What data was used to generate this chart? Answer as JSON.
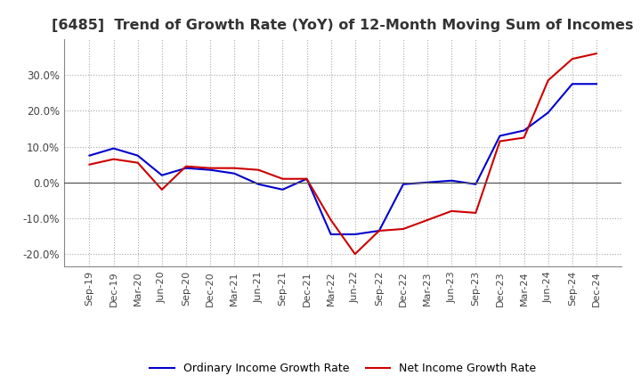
{
  "title": "[6485]  Trend of Growth Rate (YoY) of 12-Month Moving Sum of Incomes",
  "title_fontsize": 11.5,
  "ylim": [
    -0.235,
    0.4
  ],
  "yticks": [
    -0.2,
    -0.1,
    0.0,
    0.1,
    0.2,
    0.3
  ],
  "background_color": "#ffffff",
  "grid_color": "#aaaaaa",
  "ordinary_color": "#0000cc",
  "net_color": "#cc0000",
  "legend_ordinary": "Ordinary Income Growth Rate",
  "legend_net": "Net Income Growth Rate",
  "x_labels": [
    "Sep-19",
    "Dec-19",
    "Mar-20",
    "Jun-20",
    "Sep-20",
    "Dec-20",
    "Mar-21",
    "Jun-21",
    "Sep-21",
    "Dec-21",
    "Mar-22",
    "Jun-22",
    "Sep-22",
    "Dec-22",
    "Mar-23",
    "Jun-23",
    "Sep-23",
    "Dec-23",
    "Mar-24",
    "Jun-24",
    "Sep-24",
    "Dec-24"
  ],
  "ordinary_y": [
    0.075,
    0.095,
    0.075,
    0.02,
    0.04,
    0.035,
    0.025,
    -0.005,
    -0.02,
    0.01,
    -0.145,
    -0.145,
    -0.135,
    -0.005,
    0.0,
    0.005,
    -0.005,
    0.13,
    0.145,
    0.195,
    0.275,
    0.275
  ],
  "net_y": [
    0.05,
    0.065,
    0.055,
    -0.02,
    0.045,
    0.04,
    0.04,
    0.035,
    0.01,
    0.01,
    -0.105,
    -0.2,
    -0.135,
    -0.13,
    -0.105,
    -0.08,
    -0.085,
    0.115,
    0.125,
    0.285,
    0.345,
    0.36
  ]
}
